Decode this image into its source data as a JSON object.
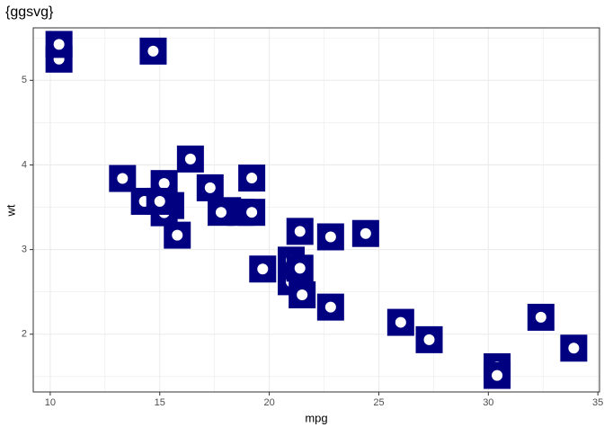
{
  "chart_data": {
    "type": "scatter",
    "title": "{ggsvg}",
    "x_label": "mpg",
    "y_label": "wt",
    "x": [
      21.0,
      21.0,
      22.8,
      21.4,
      18.7,
      18.1,
      14.3,
      24.4,
      22.8,
      19.2,
      17.8,
      16.4,
      17.3,
      15.2,
      10.4,
      10.4,
      14.7,
      32.4,
      30.4,
      33.9,
      21.5,
      15.5,
      15.2,
      13.3,
      19.2,
      27.3,
      26.0,
      30.4,
      15.8,
      19.7,
      15.0,
      21.4
    ],
    "values": [
      2.62,
      2.875,
      2.32,
      3.215,
      3.44,
      3.46,
      3.57,
      3.19,
      3.15,
      3.44,
      3.44,
      4.07,
      3.73,
      3.78,
      5.25,
      5.424,
      5.345,
      2.2,
      1.615,
      1.835,
      2.465,
      3.52,
      3.435,
      3.84,
      3.845,
      1.935,
      2.14,
      1.513,
      3.17,
      2.77,
      3.57,
      2.78
    ],
    "color": "#000080",
    "xlim": [
      9.225,
      35.075
    ],
    "ylim": [
      1.3175,
      5.6196
    ],
    "xticks": [
      10,
      15,
      20,
      25,
      30,
      35
    ],
    "yticks": [
      2,
      3,
      4,
      5
    ],
    "x_minor_ticks": [
      12.5,
      17.5,
      22.5,
      27.5,
      32.5
    ],
    "y_minor_ticks": [
      1.5,
      2.5,
      3.5,
      4.5,
      5.5
    ],
    "grid": true
  }
}
